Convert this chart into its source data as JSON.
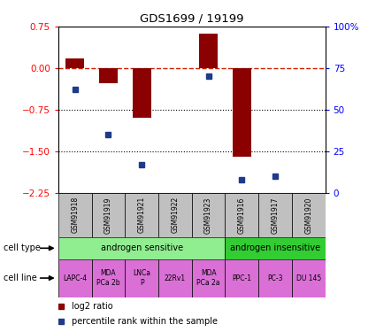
{
  "title": "GDS1699 / 19199",
  "samples": [
    "GSM91918",
    "GSM91919",
    "GSM91921",
    "GSM91922",
    "GSM91923",
    "GSM91916",
    "GSM91917",
    "GSM91920"
  ],
  "log2_ratio": [
    0.18,
    -0.28,
    -0.9,
    0.0,
    0.63,
    -1.6,
    0.0,
    0.0
  ],
  "percentile_rank": [
    62,
    35,
    17,
    0,
    70,
    8,
    10,
    0
  ],
  "has_dot": [
    true,
    true,
    true,
    false,
    true,
    true,
    true,
    false
  ],
  "bar_color": "#8B0000",
  "dot_color": "#1E3A8A",
  "ylim": [
    -2.25,
    0.75
  ],
  "y2lim": [
    0,
    100
  ],
  "yticks": [
    0.75,
    0.0,
    -0.75,
    -1.5,
    -2.25
  ],
  "y2ticks": [
    100,
    75,
    50,
    25,
    0
  ],
  "y2tick_labels": [
    "100%",
    "75",
    "50",
    "25",
    "0"
  ],
  "hline_zero": 0.0,
  "hline_dotted1": -0.75,
  "hline_dotted2": -1.5,
  "cell_type_groups": [
    {
      "label": "androgen sensitive",
      "start": 0,
      "end": 5,
      "color": "#90EE90"
    },
    {
      "label": "androgen insensitive",
      "start": 5,
      "end": 8,
      "color": "#32CD32"
    }
  ],
  "cell_lines": [
    "LAPC-4",
    "MDA\nPCa 2b",
    "LNCa\nP",
    "22Rv1",
    "MDA\nPCa 2a",
    "PPC-1",
    "PC-3",
    "DU 145"
  ],
  "cell_line_color": "#DA70D6",
  "sample_bg_color": "#C0C0C0",
  "legend_log2": "log2 ratio",
  "legend_pct": "percentile rank within the sample"
}
